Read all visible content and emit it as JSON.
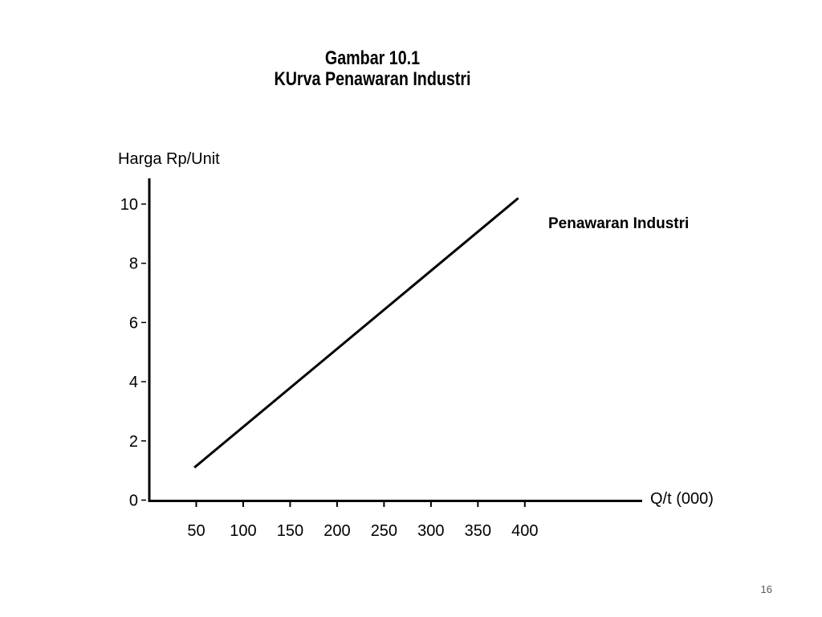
{
  "slide": {
    "title_line1": "Gambar 10.1",
    "title_line2": "KUrva Penawaran Industri",
    "page_number": "16"
  },
  "chart_data": {
    "type": "line",
    "title": "Gambar 10.1 KUrva Penawaran Industri",
    "ylabel": "Harga Rp/Unit",
    "xlabel": "Q/t (000)",
    "x_ticks": [
      50,
      100,
      150,
      200,
      250,
      300,
      350,
      400
    ],
    "y_ticks": [
      0,
      2,
      4,
      6,
      8,
      10
    ],
    "xlim": [
      0,
      525
    ],
    "ylim": [
      0,
      10
    ],
    "grid": false,
    "series": [
      {
        "name": "Penawaran Industri",
        "x": [
          48,
          393
        ],
        "y": [
          1.1,
          10.2
        ]
      }
    ]
  }
}
